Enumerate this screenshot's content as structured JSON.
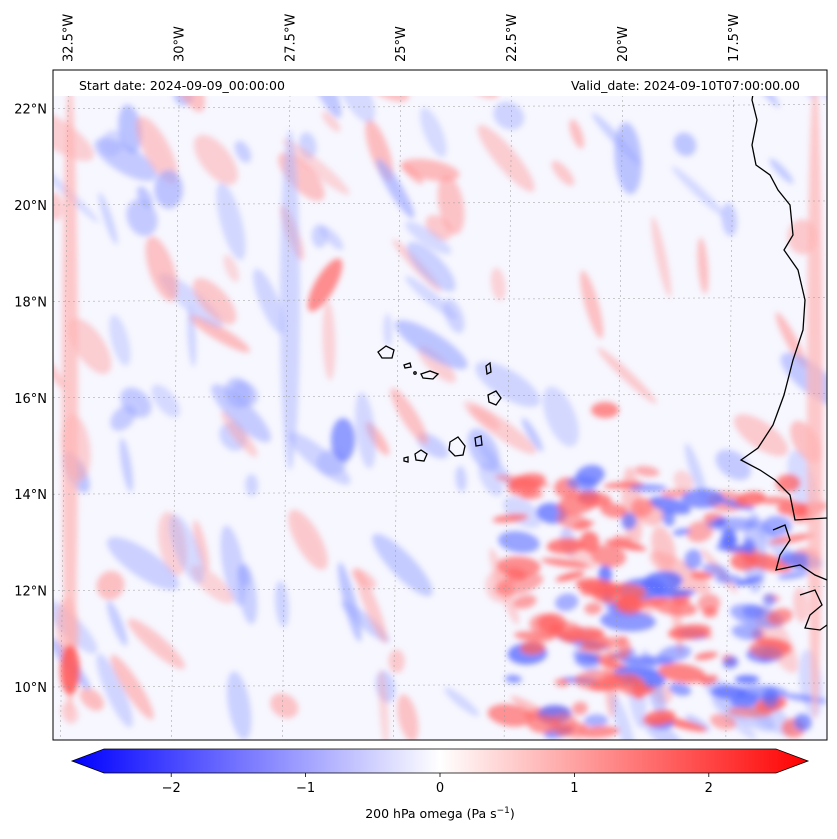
{
  "header": {
    "start_label": "Start date: 2024-09-09_00:00:00",
    "valid_label": "Valid_date: 2024-09-10T07:00:00.00"
  },
  "map": {
    "projection": "PlateCarree",
    "lon_range": [
      -32.85,
      -15.4
    ],
    "lat_range": [
      8.9,
      22.8
    ],
    "lon_ticks": [
      -32.5,
      -30,
      -27.5,
      -25,
      -22.5,
      -20,
      -17.5
    ],
    "lon_tick_labels": [
      "32.5°W",
      "30°W",
      "27.5°W",
      "25°W",
      "22.5°W",
      "20°W",
      "17.5°W"
    ],
    "lat_ticks": [
      10,
      12,
      14,
      16,
      18,
      20,
      22
    ],
    "lat_tick_labels": [
      "10°N",
      "12°N",
      "14°N",
      "16°N",
      "18°N",
      "20°N",
      "22°N"
    ],
    "gridlines": true,
    "field": "200 hPa omega",
    "colormap": "bwr",
    "colors": {
      "negative": "#0000ff",
      "zero": "#ffffff",
      "positive": "#ff0000",
      "coast": "#000000"
    }
  },
  "colorbar": {
    "ticks": [
      -2,
      -1,
      0,
      1,
      2
    ],
    "tick_labels": [
      "−2",
      "−1",
      "0",
      "1",
      "2"
    ],
    "range": [
      -2.5,
      2.5
    ],
    "extend": "both",
    "label_text": "200 hPa omega (Pa s",
    "label_exp": "−1",
    "label_close": ")"
  }
}
